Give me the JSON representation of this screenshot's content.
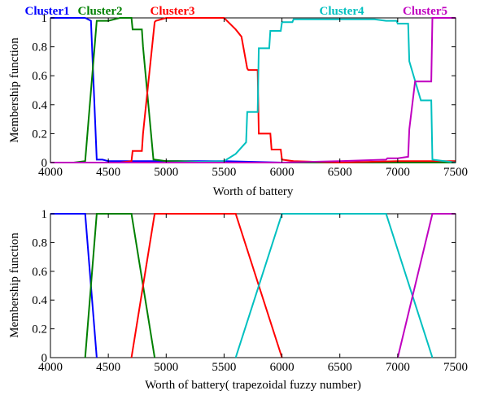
{
  "chart_data": [
    {
      "type": "line",
      "xlabel": "Worth of battery",
      "ylabel": "Membership function",
      "xlim": [
        4000,
        7500
      ],
      "ylim": [
        0,
        1
      ],
      "xticks": [
        "4000",
        "4500",
        "5000",
        "5500",
        "6000",
        "6500",
        "7000",
        "7500"
      ],
      "yticks": [
        "0",
        "0.2",
        "0.4",
        "0.6",
        "0.8",
        "1"
      ],
      "series": [
        {
          "name": "Cluster1",
          "color": "#0000ff",
          "x": [
            4000,
            4300,
            4350,
            4400,
            4410,
            4450,
            4500,
            4600,
            4800,
            5500,
            6000,
            7500
          ],
          "y": [
            1.0,
            1.0,
            0.98,
            0.02,
            0.02,
            0.02,
            0.01,
            0.01,
            0.01,
            0.01,
            0.0,
            0.0
          ]
        },
        {
          "name": "Cluster2",
          "color": "#008000",
          "x": [
            4000,
            4200,
            4300,
            4400,
            4410,
            4500,
            4600,
            4700,
            4710,
            4790,
            4800,
            4890,
            4900,
            5000,
            5100,
            5500,
            7500
          ],
          "y": [
            0.0,
            0.0,
            0.01,
            0.98,
            0.98,
            0.98,
            1.0,
            1.0,
            0.92,
            0.92,
            0.8,
            0.02,
            0.02,
            0.01,
            0.01,
            0.0,
            0.0
          ]
        },
        {
          "name": "Cluster3",
          "color": "#ff0000",
          "x": [
            4000,
            4600,
            4700,
            4710,
            4790,
            4800,
            4900,
            4910,
            5000,
            5500,
            5600,
            5650,
            5700,
            5710,
            5790,
            5800,
            5900,
            5910,
            5990,
            6000,
            6100,
            6500,
            7000,
            7500
          ],
          "y": [
            0.0,
            0.0,
            0.01,
            0.08,
            0.08,
            0.2,
            0.97,
            0.98,
            1.0,
            1.0,
            0.92,
            0.87,
            0.65,
            0.64,
            0.64,
            0.2,
            0.2,
            0.09,
            0.09,
            0.02,
            0.01,
            0.0,
            0.01,
            0.01
          ]
        },
        {
          "name": "Cluster4",
          "color": "#00c0c0",
          "x": [
            4000,
            5000,
            5500,
            5600,
            5690,
            5700,
            5790,
            5800,
            5890,
            5900,
            5990,
            6000,
            6090,
            6100,
            6500,
            6800,
            6900,
            6990,
            7000,
            7090,
            7100,
            7200,
            7290,
            7300,
            7500
          ],
          "y": [
            0.0,
            0.0,
            0.01,
            0.06,
            0.14,
            0.35,
            0.35,
            0.79,
            0.79,
            0.91,
            0.91,
            0.97,
            0.97,
            0.99,
            0.99,
            0.99,
            0.98,
            0.98,
            0.96,
            0.96,
            0.7,
            0.43,
            0.43,
            0.02,
            0.0
          ]
        },
        {
          "name": "Cluster5",
          "color": "#c000c0",
          "x": [
            4000,
            6000,
            6500,
            6900,
            6910,
            7000,
            7090,
            7100,
            7150,
            7200,
            7290,
            7300,
            7500
          ],
          "y": [
            0.0,
            0.0,
            0.01,
            0.02,
            0.03,
            0.03,
            0.04,
            0.23,
            0.56,
            0.56,
            0.56,
            1.0,
            1.0
          ]
        }
      ]
    },
    {
      "type": "line",
      "xlabel": "Worth of battery( trapezoidal fuzzy number)",
      "ylabel": "Membership function",
      "xlim": [
        4000,
        7500
      ],
      "ylim": [
        0,
        1
      ],
      "xticks": [
        "4000",
        "4500",
        "5000",
        "5500",
        "6000",
        "6500",
        "7000",
        "7500"
      ],
      "yticks": [
        "0",
        "0.2",
        "0.4",
        "0.6",
        "0.8",
        "1"
      ],
      "series": [
        {
          "color": "#0000ff",
          "x": [
            4000,
            4300,
            4400
          ],
          "y": [
            1,
            1,
            0
          ]
        },
        {
          "color": "#008000",
          "x": [
            4300,
            4400,
            4600,
            4700,
            4900
          ],
          "y": [
            0,
            1,
            1,
            1,
            0
          ]
        },
        {
          "color": "#ff0000",
          "x": [
            4700,
            4900,
            5600,
            6000
          ],
          "y": [
            0,
            1,
            1,
            0
          ]
        },
        {
          "color": "#00c0c0",
          "x": [
            5600,
            6000,
            6900,
            7300
          ],
          "y": [
            0,
            1,
            1,
            0
          ]
        },
        {
          "color": "#c000c0",
          "x": [
            7000,
            7300,
            7500
          ],
          "y": [
            0,
            1,
            1
          ]
        }
      ]
    }
  ]
}
